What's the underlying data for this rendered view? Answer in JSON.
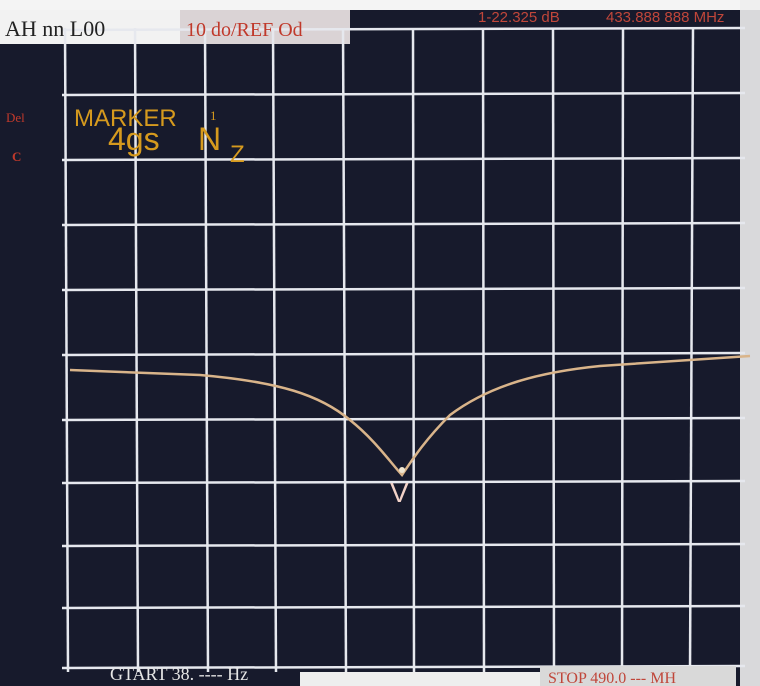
{
  "header": {
    "mode": "AH nn L00",
    "scale": "10 do/REF Od",
    "marker_level": "1-22.325 dB",
    "marker_freq": "433.888 888 MHz"
  },
  "side": {
    "delta": "Del",
    "c": "C"
  },
  "marker": {
    "title": "MARKER",
    "index": "1",
    "value": "4gs",
    "unit_n": "N",
    "unit_z": "Z",
    "symbol": "V"
  },
  "footer": {
    "start": "GTART 38. ---- Hz",
    "stop": "STOP 490.0 --- MH"
  }
}
